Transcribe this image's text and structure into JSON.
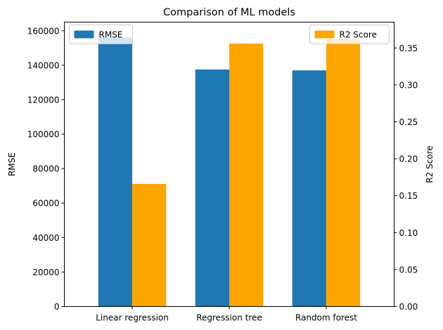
{
  "chart_data": {
    "type": "bar",
    "title": "Comparison of ML models",
    "xlabel": "",
    "categories": [
      "Linear regression",
      "Regression tree",
      "Random forest"
    ],
    "series": [
      {
        "name": "RMSE",
        "axis": "left",
        "color": "#1f77b4",
        "values": [
          156000,
          137500,
          137000
        ]
      },
      {
        "name": "R2 Score",
        "axis": "right",
        "color": "#ffa500",
        "values": [
          0.166,
          0.356,
          0.362
        ]
      }
    ],
    "left_axis": {
      "label": "RMSE",
      "ylim": [
        0,
        165000
      ],
      "ticks": [
        0,
        20000,
        40000,
        60000,
        80000,
        100000,
        120000,
        140000,
        160000
      ],
      "tick_labels": [
        "0",
        "20000",
        "40000",
        "60000",
        "80000",
        "100000",
        "120000",
        "140000",
        "160000"
      ]
    },
    "right_axis": {
      "label": "R2 Score",
      "ylim": [
        0,
        0.385
      ],
      "ticks": [
        0,
        0.05,
        0.1,
        0.15,
        0.2,
        0.25,
        0.3,
        0.35
      ],
      "tick_labels": [
        "0.00",
        "0.05",
        "0.10",
        "0.15",
        "0.20",
        "0.25",
        "0.30",
        "0.35"
      ]
    },
    "legends": [
      {
        "series": "RMSE",
        "position": "top-left"
      },
      {
        "series": "R2 Score",
        "position": "top-right"
      }
    ],
    "grid": false
  }
}
